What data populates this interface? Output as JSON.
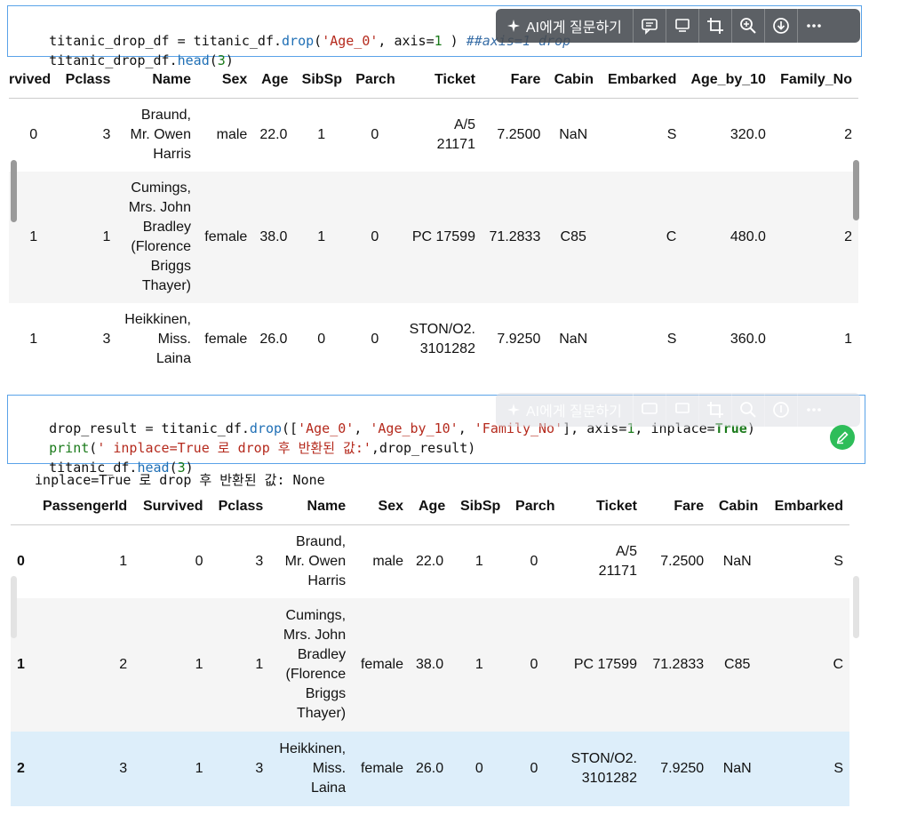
{
  "cell1": {
    "line1_parts": [
      "titanic_drop_df = titanic_df.",
      "drop",
      "(",
      "'Age_0'",
      ", axis=",
      "1",
      " ) ",
      "##axis=1 drop"
    ],
    "line2_parts": [
      "titanic_drop_df.",
      "head",
      "(",
      "3",
      ")"
    ]
  },
  "cell2": {
    "line1_parts": [
      "drop_result = titanic_df.",
      "drop",
      "([",
      "'Age_0'",
      ", ",
      "'Age_by_10'",
      ", ",
      "'Family_No'",
      "], axis=",
      "1",
      ", inplace=",
      "True",
      ")"
    ],
    "line2_parts": [
      "print",
      "(",
      "' inplace=True 로 drop 후 반환된 값:'",
      ",drop_result)"
    ],
    "line3_parts": [
      "titanic_df.",
      "head",
      "(",
      "3",
      ")"
    ]
  },
  "toolbar": {
    "ai_label": "AI에게 질문하기",
    "icons": [
      "chat-icon",
      "comment-icon",
      "crop-icon",
      "zoom-icon",
      "download-icon",
      "more-icon"
    ]
  },
  "output_text": " inplace=True 로 drop 후 반환된 값: None",
  "table1": {
    "headers": [
      "rvived",
      "Pclass",
      "Name",
      "Sex",
      "Age",
      "SibSp",
      "Parch",
      "Ticket",
      "Fare",
      "Cabin",
      "Embarked",
      "Age_by_10",
      "Family_No"
    ],
    "rows": [
      [
        "0",
        "3",
        [
          "Braund,",
          "Mr. Owen",
          "Harris"
        ],
        "male",
        "22.0",
        "1",
        "0",
        [
          "A/5",
          "21171"
        ],
        "7.2500",
        "NaN",
        "S",
        "320.0",
        "2"
      ],
      [
        "1",
        "1",
        [
          "Cumings,",
          "Mrs. John",
          "Bradley",
          "(Florence",
          "Briggs",
          "Thayer)"
        ],
        "female",
        "38.0",
        "1",
        "0",
        [
          "PC 17599"
        ],
        "71.2833",
        "C85",
        "C",
        "480.0",
        "2"
      ],
      [
        "1",
        "3",
        [
          "Heikkinen,",
          "Miss.",
          "Laina"
        ],
        "female",
        "26.0",
        "0",
        "0",
        [
          "STON/O2.",
          "3101282"
        ],
        "7.9250",
        "NaN",
        "S",
        "360.0",
        "1"
      ]
    ]
  },
  "table2": {
    "headers": [
      "",
      "PassengerId",
      "Survived",
      "Pclass",
      "Name",
      "Sex",
      "Age",
      "SibSp",
      "Parch",
      "Ticket",
      "Fare",
      "Cabin",
      "Embarked"
    ],
    "rows": [
      [
        "0",
        "1",
        "0",
        "3",
        [
          "Braund,",
          "Mr. Owen",
          "Harris"
        ],
        "male",
        "22.0",
        "1",
        "0",
        [
          "A/5",
          "21171"
        ],
        "7.2500",
        "NaN",
        "S"
      ],
      [
        "1",
        "2",
        "1",
        "1",
        [
          "Cumings,",
          "Mrs. John",
          "Bradley",
          "(Florence",
          "Briggs",
          "Thayer)"
        ],
        "female",
        "38.0",
        "1",
        "0",
        [
          "PC 17599"
        ],
        "71.2833",
        "C85",
        "C"
      ],
      [
        "2",
        "3",
        "1",
        "3",
        [
          "Heikkinen,",
          "Miss.",
          "Laina"
        ],
        "female",
        "26.0",
        "0",
        "0",
        [
          "STON/O2.",
          "3101282"
        ],
        "7.9250",
        "NaN",
        "S"
      ]
    ]
  }
}
